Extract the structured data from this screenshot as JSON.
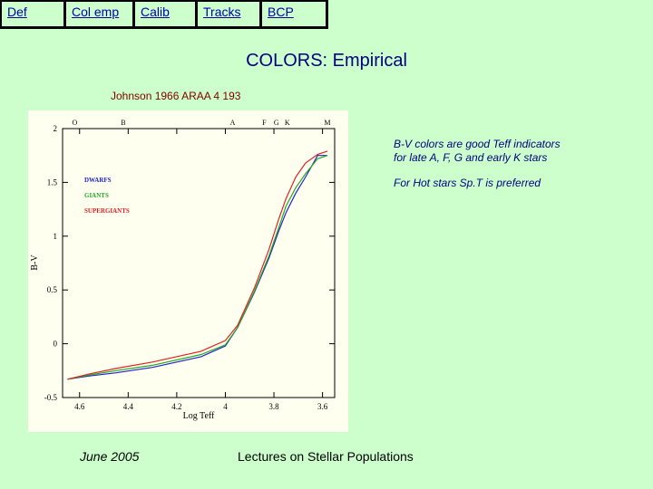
{
  "nav": {
    "items": [
      "Def",
      "Col emp",
      "Calib",
      "Tracks",
      "BCP"
    ]
  },
  "slide": {
    "title": "COLORS: Empirical",
    "reference": "Johnson 1966 ARAA 4 193",
    "note1_line1": "B-V colors are good Teff indicators",
    "note1_line2": "for late A, F, G and early K stars",
    "note2": "For Hot stars Sp.T is preferred",
    "footer_date": "June 2005",
    "footer_title": "Lectures on Stellar Populations"
  },
  "colors": {
    "background": "#ccffcc",
    "nav_bar": "#000000",
    "link": "#0000aa",
    "title": "#000080",
    "reference": "#800000",
    "chart_panel": "#fffff0"
  },
  "chart_data": {
    "type": "line",
    "xlabel": "Log Teff",
    "ylabel": "B-V",
    "xlim": [
      4.67,
      3.55
    ],
    "ylim": [
      -0.5,
      2.0
    ],
    "x_reversed": true,
    "x_ticks": [
      4.6,
      4.4,
      4.2,
      4.0,
      3.8,
      3.6
    ],
    "x_tick_labels": [
      "4.6",
      "4.4",
      "4.2",
      "4",
      "3.8",
      "3.6"
    ],
    "y_ticks": [
      2,
      1.5,
      1,
      0.5,
      0,
      -0.5
    ],
    "y_tick_labels": [
      "2",
      "1.5",
      "1",
      "0.5",
      "0",
      "-0.5"
    ],
    "spectral_types": [
      {
        "label": "O",
        "x": 4.62
      },
      {
        "label": "B",
        "x": 4.42
      },
      {
        "label": "A",
        "x": 3.97
      },
      {
        "label": "F",
        "x": 3.84
      },
      {
        "label": "G",
        "x": 3.79
      },
      {
        "label": "K",
        "x": 3.745
      },
      {
        "label": "M",
        "x": 3.58
      }
    ],
    "legend_position": "upper-left",
    "series": [
      {
        "name": "DWARFS",
        "color": "#2222cc",
        "x": [
          4.65,
          4.56,
          4.45,
          4.3,
          4.1,
          4.0,
          3.95,
          3.88,
          3.82,
          3.78,
          3.75,
          3.71,
          3.67,
          3.62,
          3.58
        ],
        "y": [
          -0.33,
          -0.3,
          -0.27,
          -0.22,
          -0.12,
          -0.02,
          0.15,
          0.48,
          0.8,
          1.05,
          1.22,
          1.4,
          1.55,
          1.75,
          1.75
        ]
      },
      {
        "name": "GIANTS",
        "color": "#22aa22",
        "x": [
          4.65,
          4.56,
          4.45,
          4.3,
          4.1,
          4.0,
          3.95,
          3.88,
          3.82,
          3.78,
          3.75,
          3.71,
          3.67,
          3.62,
          3.58
        ],
        "y": [
          -0.33,
          -0.29,
          -0.25,
          -0.2,
          -0.1,
          -0.01,
          0.15,
          0.49,
          0.82,
          1.08,
          1.28,
          1.45,
          1.58,
          1.72,
          1.75
        ]
      },
      {
        "name": "SUPERGIANTS",
        "color": "#dd2222",
        "x": [
          4.65,
          4.56,
          4.45,
          4.3,
          4.1,
          4.0,
          3.95,
          3.88,
          3.82,
          3.78,
          3.75,
          3.71,
          3.67,
          3.62,
          3.58
        ],
        "y": [
          -0.33,
          -0.28,
          -0.23,
          -0.17,
          -0.07,
          0.03,
          0.17,
          0.52,
          0.88,
          1.16,
          1.35,
          1.55,
          1.68,
          1.76,
          1.79
        ]
      }
    ]
  }
}
